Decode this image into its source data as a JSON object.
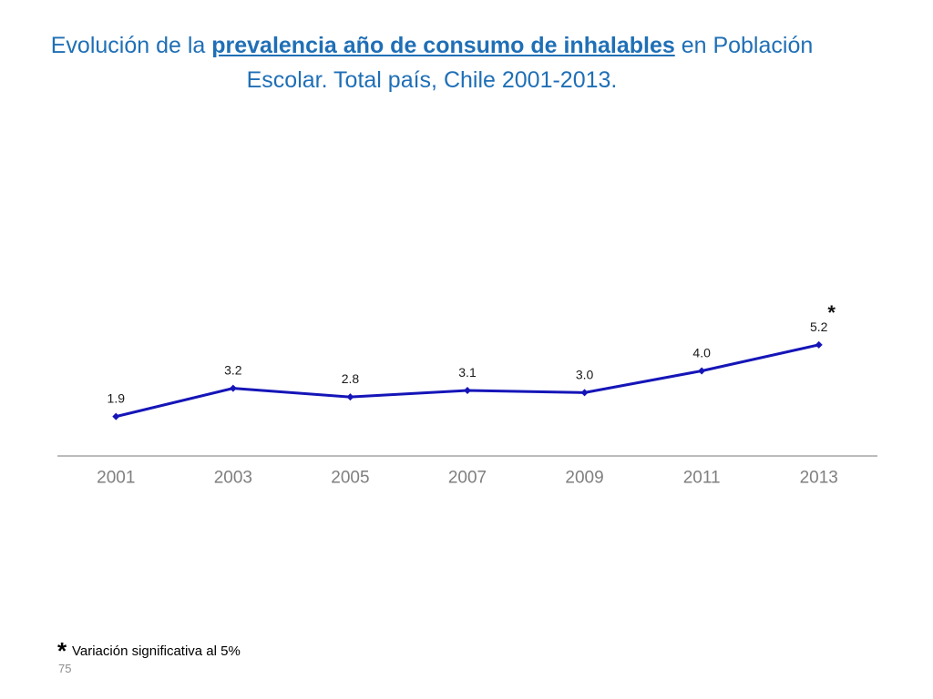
{
  "chart_data": {
    "type": "line",
    "title": {
      "prefix": "Evolución de la ",
      "emphasis": "prevalencia año de consumo de inhalables",
      "suffix": " en Población",
      "line2": "Escolar. Total país, Chile 2001-2013."
    },
    "categories": [
      "2001",
      "2003",
      "2005",
      "2007",
      "2009",
      "2011",
      "2013"
    ],
    "values": [
      1.9,
      3.2,
      2.8,
      3.1,
      3.0,
      4.0,
      5.2
    ],
    "data_labels": [
      "1.9",
      "3.2",
      "2.8",
      "3.1",
      "3.0",
      "4.0",
      "5.2"
    ],
    "ylim": [
      0,
      8
    ],
    "grid": false,
    "annotations": [
      {
        "index": 6,
        "text": "*"
      }
    ],
    "line_color": "#1515b8",
    "axis_color": "#a6a6a6",
    "title_color": "#1f6fb6"
  },
  "footnote": {
    "marker": "*",
    "text": "Variación significativa al 5%"
  },
  "page_number": "75"
}
